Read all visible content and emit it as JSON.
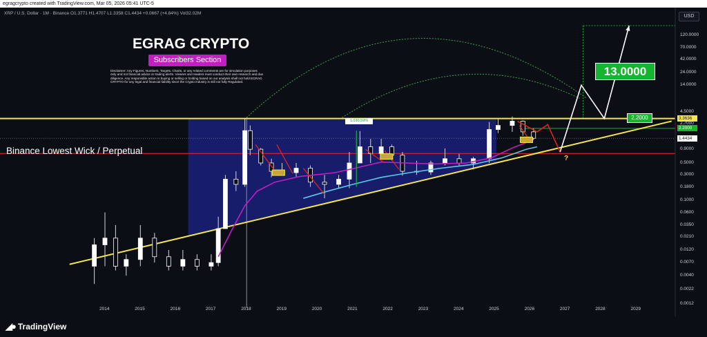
{
  "header": {
    "created_text": "egragcrypto created with TradingView.com, Mar 05, 2026 05:41 UTC-5"
  },
  "legend": {
    "text": "XRP / U.S. Dollar · 1M · Binance  O1.3771  H1.4707  L1.3358  C1.4434  +0.0667 (+4.84%)  Vol32.02M"
  },
  "currency_button": "USD",
  "annotations": {
    "title": "EGRAG CRYPTO",
    "subtitle": "Subscribers Section",
    "disclaimer": "Disclaimer: Any Figures, Numbers, Targets, Charts, or any related comments are for simulation purposes only and not financial advice or trading alerts. Viewers and readers must conduct their own research and due diligence. Any responsible action in buying or selling or holding based on our analysis shall not hold EGRAG CRYPTO for any legal and financial liability since the Crypto industry is still not fully Regulated.",
    "binance_label": "Binance Lowest Wick / Perpetual",
    "target_big": "13.0000",
    "target_small": "2.2000",
    "pct_label": "1,030.59%",
    "question": "?"
  },
  "price_tags": [
    {
      "value": "3.3636",
      "bg": "#f5e74a",
      "fg": "#131722"
    },
    {
      "value": "2.2000",
      "bg": "#16b52f",
      "fg": "#ffffff"
    },
    {
      "value": "1.4434",
      "bg": "#ffffff",
      "fg": "#131722"
    }
  ],
  "brand": {
    "name": "TradingView"
  },
  "colors": {
    "background": "#0c0e15",
    "yellow_line": "#f5e74a",
    "red_line": "#e02424",
    "magenta_ma": "#c21fc0",
    "cyan_ma": "#5ec8e8",
    "range_fill": "#1a1f7a",
    "up_candle": "#ffffff",
    "down_candle": "#ffffff",
    "green_target": "#16b52f"
  },
  "chart_data": {
    "type": "candlestick",
    "symbol": "XRP / U.S. Dollar",
    "interval": "1M",
    "exchange": "Binance",
    "y_scale": "log",
    "y_ticks": [
      120.0,
      70.0,
      42.0,
      24.0,
      14.0,
      4.5,
      2.7,
      0.9,
      0.5,
      0.3,
      0.18,
      0.1,
      0.06,
      0.035,
      0.021,
      0.012,
      0.007,
      0.004,
      0.0022,
      0.0012
    ],
    "y_tick_labels": [
      "120.0000",
      "70.0000",
      "42.0000",
      "24.0000",
      "14.0000",
      "4.5000",
      "2.7000",
      "0.9000",
      "0.5000",
      "0.3000",
      "0.1800",
      "0.1000",
      "0.0600",
      "0.0350",
      "0.0210",
      "0.0120",
      "0.0070",
      "0.0040",
      "0.0022",
      "0.0012"
    ],
    "x_ticks": [
      2014,
      2015,
      2016,
      2017,
      2018,
      2019,
      2020,
      2021,
      2022,
      2023,
      2024,
      2025,
      2026,
      2027,
      2028,
      2029
    ],
    "x_range": [
      2013.0,
      2030.0
    ],
    "y_range": [
      0.001,
      250
    ],
    "ohlc_yearly_approx": [
      {
        "t": 2013.7,
        "o": 0.006,
        "h": 0.02,
        "l": 0.0028,
        "c": 0.015
      },
      {
        "t": 2014.0,
        "o": 0.015,
        "h": 0.06,
        "l": 0.006,
        "c": 0.02
      },
      {
        "t": 2014.3,
        "o": 0.02,
        "h": 0.035,
        "l": 0.005,
        "c": 0.006
      },
      {
        "t": 2014.6,
        "o": 0.006,
        "h": 0.01,
        "l": 0.004,
        "c": 0.008
      },
      {
        "t": 2015.0,
        "o": 0.008,
        "h": 0.035,
        "l": 0.006,
        "c": 0.02
      },
      {
        "t": 2015.4,
        "o": 0.02,
        "h": 0.025,
        "l": 0.007,
        "c": 0.009
      },
      {
        "t": 2015.8,
        "o": 0.009,
        "h": 0.012,
        "l": 0.005,
        "c": 0.006
      },
      {
        "t": 2016.2,
        "o": 0.006,
        "h": 0.012,
        "l": 0.005,
        "c": 0.008
      },
      {
        "t": 2016.6,
        "o": 0.008,
        "h": 0.01,
        "l": 0.005,
        "c": 0.006
      },
      {
        "t": 2017.0,
        "o": 0.006,
        "h": 0.01,
        "l": 0.005,
        "c": 0.007
      },
      {
        "t": 2017.2,
        "o": 0.007,
        "h": 0.05,
        "l": 0.006,
        "c": 0.03
      },
      {
        "t": 2017.4,
        "o": 0.03,
        "h": 0.3,
        "l": 0.03,
        "c": 0.25
      },
      {
        "t": 2017.7,
        "o": 0.25,
        "h": 0.35,
        "l": 0.15,
        "c": 0.2
      },
      {
        "t": 2017.95,
        "o": 0.2,
        "h": 3.3,
        "l": 0.18,
        "c": 2.0
      },
      {
        "t": 2018.1,
        "o": 2.0,
        "h": 2.5,
        "l": 0.7,
        "c": 0.9
      },
      {
        "t": 2018.4,
        "o": 0.9,
        "h": 0.95,
        "l": 0.45,
        "c": 0.5
      },
      {
        "t": 2018.7,
        "o": 0.5,
        "h": 0.6,
        "l": 0.27,
        "c": 0.35
      },
      {
        "t": 2019.0,
        "o": 0.35,
        "h": 0.5,
        "l": 0.29,
        "c": 0.33
      },
      {
        "t": 2019.4,
        "o": 0.33,
        "h": 0.5,
        "l": 0.27,
        "c": 0.4
      },
      {
        "t": 2019.8,
        "o": 0.4,
        "h": 0.45,
        "l": 0.18,
        "c": 0.22
      },
      {
        "t": 2020.2,
        "o": 0.22,
        "h": 0.3,
        "l": 0.11,
        "c": 0.2
      },
      {
        "t": 2020.6,
        "o": 0.2,
        "h": 0.3,
        "l": 0.17,
        "c": 0.25
      },
      {
        "t": 2020.9,
        "o": 0.25,
        "h": 0.8,
        "l": 0.17,
        "c": 0.5
      },
      {
        "t": 2021.2,
        "o": 0.5,
        "h": 1.96,
        "l": 0.5,
        "c": 1.0
      },
      {
        "t": 2021.5,
        "o": 1.0,
        "h": 1.4,
        "l": 0.5,
        "c": 0.75
      },
      {
        "t": 2021.8,
        "o": 0.75,
        "h": 1.4,
        "l": 0.7,
        "c": 1.0
      },
      {
        "t": 2022.1,
        "o": 1.0,
        "h": 1.1,
        "l": 0.55,
        "c": 0.7
      },
      {
        "t": 2022.4,
        "o": 0.7,
        "h": 0.8,
        "l": 0.29,
        "c": 0.35
      },
      {
        "t": 2022.8,
        "o": 0.35,
        "h": 0.55,
        "l": 0.3,
        "c": 0.34
      },
      {
        "t": 2023.2,
        "o": 0.34,
        "h": 0.55,
        "l": 0.3,
        "c": 0.5
      },
      {
        "t": 2023.6,
        "o": 0.5,
        "h": 0.93,
        "l": 0.45,
        "c": 0.6
      },
      {
        "t": 2024.0,
        "o": 0.6,
        "h": 0.74,
        "l": 0.45,
        "c": 0.5
      },
      {
        "t": 2024.4,
        "o": 0.5,
        "h": 0.65,
        "l": 0.38,
        "c": 0.6
      },
      {
        "t": 2024.85,
        "o": 0.6,
        "h": 2.9,
        "l": 0.5,
        "c": 2.1
      },
      {
        "t": 2025.1,
        "o": 2.1,
        "h": 3.4,
        "l": 1.8,
        "c": 2.5
      },
      {
        "t": 2025.5,
        "o": 2.5,
        "h": 3.66,
        "l": 1.9,
        "c": 3.0
      },
      {
        "t": 2025.8,
        "o": 3.0,
        "h": 3.1,
        "l": 1.6,
        "c": 1.9
      },
      {
        "t": 2026.1,
        "o": 1.9,
        "h": 2.2,
        "l": 1.33,
        "c": 1.44
      }
    ],
    "lines": {
      "horizontal_resistance": 3.3636,
      "binance_wick_level": 0.75,
      "upper_target": 180,
      "small_target": 2.2,
      "ascending_support": [
        {
          "t": 2013.0,
          "y": 0.0065
        },
        {
          "t": 2030.0,
          "y": 3.0
        }
      ]
    },
    "projection_path": [
      {
        "t": 2025.65,
        "y": 3.0
      },
      {
        "t": 2026.2,
        "y": 1.9
      },
      {
        "t": 2026.5,
        "y": 2.6
      },
      {
        "t": 2026.85,
        "y": 0.8
      },
      {
        "t": 2027.45,
        "y": 14.0
      },
      {
        "t": 2028.1,
        "y": 3.36
      },
      {
        "t": 2028.8,
        "y": 180
      }
    ]
  }
}
